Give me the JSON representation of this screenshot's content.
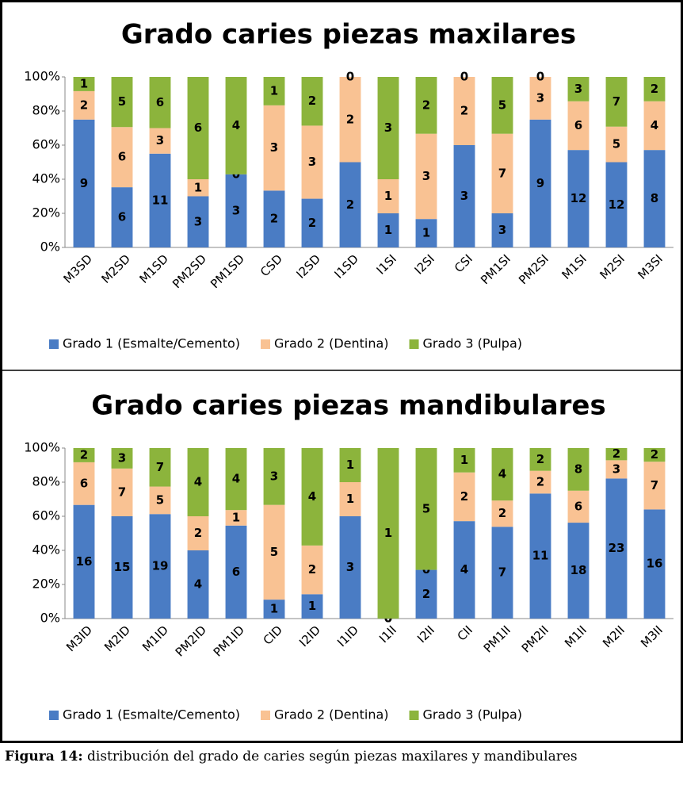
{
  "chart_data": [
    {
      "type": "bar",
      "stacking": "percent",
      "title": "Grado caries piezas maxilares",
      "categories": [
        "M3SD",
        "M2SD",
        "M1SD",
        "PM2SD",
        "PM1SD",
        "CSD",
        "I2SD",
        "I1SD",
        "I1SI",
        "I2SI",
        "CSI",
        "PM1SI",
        "PM2SI",
        "M1SI",
        "M2SI",
        "M3SI"
      ],
      "series": [
        {
          "name": "Grado 1 (Esmalte/Cemento)",
          "color": "#4a7cc4",
          "values": [
            9,
            6,
            11,
            3,
            3,
            2,
            2,
            2,
            1,
            1,
            3,
            3,
            9,
            12,
            12,
            8
          ]
        },
        {
          "name": "Grado 2 (Dentina)",
          "color": "#f9c293",
          "values": [
            2,
            6,
            3,
            1,
            0,
            3,
            3,
            2,
            1,
            3,
            2,
            7,
            3,
            6,
            5,
            4
          ]
        },
        {
          "name": "Grado 3 (Pulpa)",
          "color": "#8cb43c",
          "values": [
            1,
            5,
            6,
            6,
            4,
            1,
            2,
            0,
            3,
            2,
            0,
            5,
            0,
            3,
            7,
            2
          ]
        }
      ],
      "ylim": [
        0,
        100
      ],
      "yticks": [
        {
          "value": 0,
          "label": "0%"
        },
        {
          "value": 20,
          "label": "20%"
        },
        {
          "value": 40,
          "label": "40%"
        },
        {
          "value": 60,
          "label": "60%"
        },
        {
          "value": 80,
          "label": "80%"
        },
        {
          "value": 100,
          "label": "100%"
        }
      ],
      "legend": "bottom"
    },
    {
      "type": "bar",
      "stacking": "percent",
      "title": "Grado caries piezas mandibulares",
      "categories": [
        "M3ID",
        "M2ID",
        "M1ID",
        "PM2ID",
        "PM1ID",
        "CID",
        "I2ID",
        "I1ID",
        "I1II",
        "I2II",
        "CII",
        "PM1II",
        "PM2II",
        "M1II",
        "M2II",
        "M3II"
      ],
      "series": [
        {
          "name": "Grado 1 (Esmalte/Cemento)",
          "color": "#4a7cc4",
          "values": [
            16,
            15,
            19,
            4,
            6,
            1,
            1,
            3,
            0,
            2,
            4,
            7,
            11,
            18,
            23,
            16
          ]
        },
        {
          "name": "Grado 2 (Dentina)",
          "color": "#f9c293",
          "values": [
            6,
            7,
            5,
            2,
            1,
            5,
            2,
            1,
            0,
            0,
            2,
            2,
            2,
            6,
            3,
            7
          ]
        },
        {
          "name": "Grado 3 (Pulpa)",
          "color": "#8cb43c",
          "values": [
            2,
            3,
            7,
            4,
            4,
            3,
            4,
            1,
            1,
            5,
            1,
            4,
            2,
            8,
            2,
            2
          ]
        }
      ],
      "ylim": [
        0,
        100
      ],
      "yticks": [
        {
          "value": 0,
          "label": "0%"
        },
        {
          "value": 20,
          "label": "20%"
        },
        {
          "value": 40,
          "label": "40%"
        },
        {
          "value": 60,
          "label": "60%"
        },
        {
          "value": 80,
          "label": "80%"
        },
        {
          "value": 100,
          "label": "100%"
        }
      ],
      "legend": "bottom"
    }
  ],
  "caption": {
    "label": "Figura 14:",
    "text": "distribución del grado de caries según piezas maxilares y mandibulares"
  }
}
